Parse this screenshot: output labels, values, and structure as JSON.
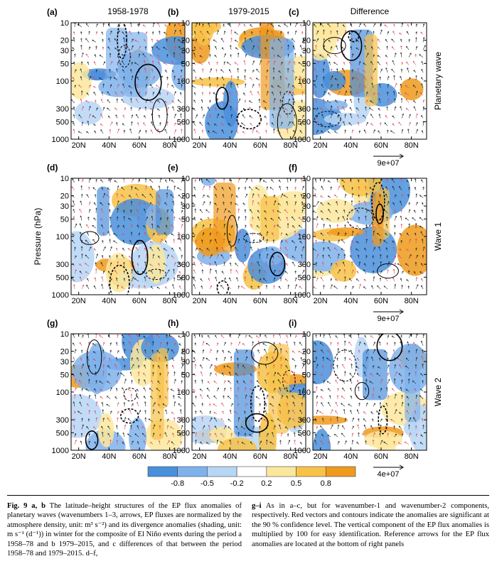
{
  "columns": [
    "1958-1978",
    "1979-2015",
    "Difference"
  ],
  "rows": [
    "Planetary wave",
    "Wave 1",
    "Wave 2"
  ],
  "panel_labels": [
    "(a)",
    "(b)",
    "(c)",
    "(d)",
    "(e)",
    "(f)",
    "(g)",
    "(h)",
    "(i)"
  ],
  "y_axis": {
    "label": "Pressure (hPa)",
    "ticks": [
      "10",
      "20",
      "30",
      "50",
      "100",
      "300",
      "500",
      "1000"
    ]
  },
  "x_axis": {
    "ticks": [
      "20N",
      "40N",
      "60N",
      "80N"
    ]
  },
  "reference_arrows": [
    "9e+07",
    "9e+07",
    "4e+07"
  ],
  "colorbar": {
    "ticks": [
      "-0.8",
      "-0.5",
      "-0.2",
      "0.2",
      "0.5",
      "0.8"
    ],
    "colors": [
      "#4a8fdc",
      "#7fb2ec",
      "#b7d6f6",
      "#ffffff",
      "#fbe79c",
      "#f7c247",
      "#ef9a1c"
    ]
  },
  "caption": {
    "left_bold": "Fig. 9  a, b",
    "left_text": " The latitude–height structures of the EP flux anomalies of planetary waves (wavenumbers 1–3, arrows, EP fluxes are normalized by the atmosphere density, unit: m³ s⁻²) and its divergence anomalies (shading, unit: m s⁻¹ (d⁻¹)) in winter for the composite of El Niño events during the period a 1958–78 and b 1979–2015, and c differences of that between the period 1958–78 and 1979–2015. d–f,",
    "right_bold": "g–i",
    "right_text": " As in a–c, but for wavenumber-1 and wavenumber-2 components, respectively. Red vectors and contours indicate the anomalies are significant at the 90 % confidence level. The vertical component of the EP flux anomalies is multiplied by 100 for easy identification. Reference arrows for the EP flux anomalies are located at the bottom of right panels"
  }
}
